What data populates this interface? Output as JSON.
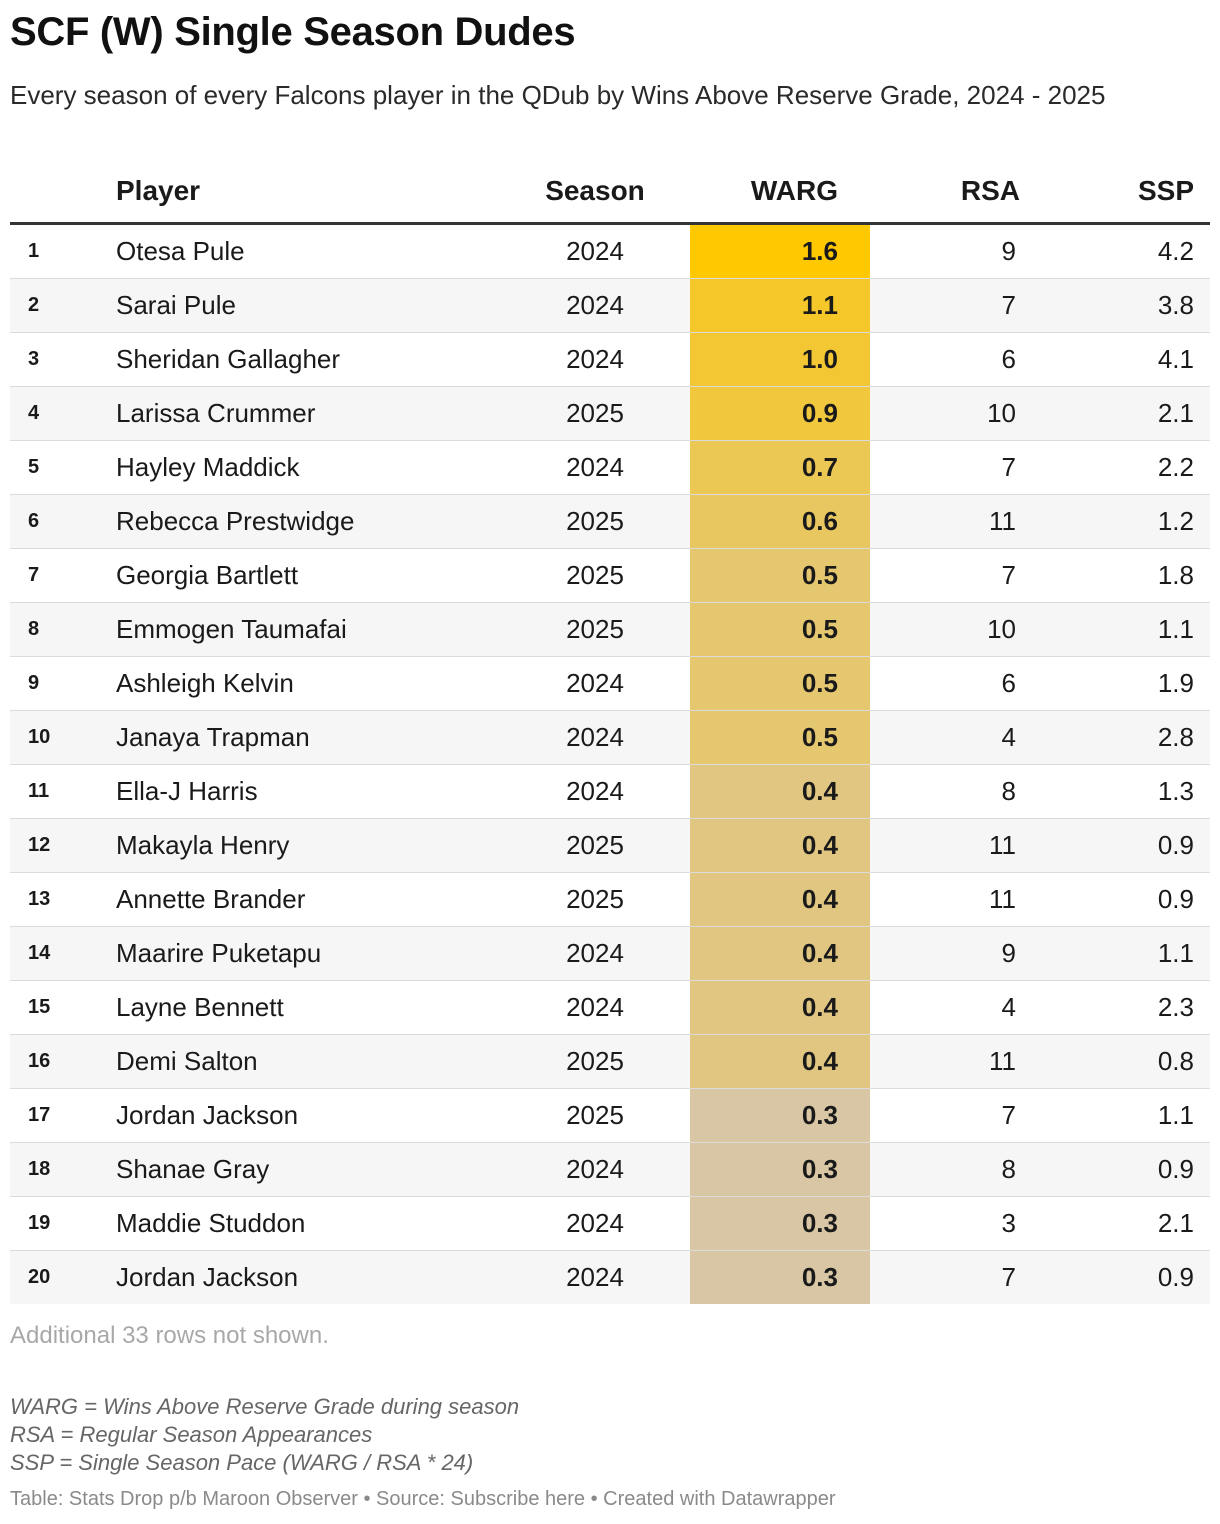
{
  "title": "SCF (W) Single Season Dudes",
  "subtitle": "Every season of every Falcons player in the QDub by Wins Above Reserve Grade, 2024 - 2025",
  "colors": {
    "warg_high": "#FFC800",
    "warg_low": "#D8C6A4",
    "header_rule": "#333333",
    "zebra": "#F6F6F6"
  },
  "chart_data": {
    "type": "table",
    "columns": [
      "",
      "Player",
      "Season",
      "WARG",
      "RSA",
      "SSP"
    ],
    "rows": [
      {
        "rank": "1",
        "player": "Otesa Pule",
        "season": "2024",
        "warg": "1.6",
        "rsa": "9",
        "ssp": "4.2"
      },
      {
        "rank": "2",
        "player": "Sarai Pule",
        "season": "2024",
        "warg": "1.1",
        "rsa": "7",
        "ssp": "3.8"
      },
      {
        "rank": "3",
        "player": "Sheridan Gallagher",
        "season": "2024",
        "warg": "1.0",
        "rsa": "6",
        "ssp": "4.1"
      },
      {
        "rank": "4",
        "player": "Larissa Crummer",
        "season": "2025",
        "warg": "0.9",
        "rsa": "10",
        "ssp": "2.1"
      },
      {
        "rank": "5",
        "player": "Hayley Maddick",
        "season": "2024",
        "warg": "0.7",
        "rsa": "7",
        "ssp": "2.2"
      },
      {
        "rank": "6",
        "player": "Rebecca Prestwidge",
        "season": "2025",
        "warg": "0.6",
        "rsa": "11",
        "ssp": "1.2"
      },
      {
        "rank": "7",
        "player": "Georgia Bartlett",
        "season": "2025",
        "warg": "0.5",
        "rsa": "7",
        "ssp": "1.8"
      },
      {
        "rank": "8",
        "player": "Emmogen Taumafai",
        "season": "2025",
        "warg": "0.5",
        "rsa": "10",
        "ssp": "1.1"
      },
      {
        "rank": "9",
        "player": "Ashleigh Kelvin",
        "season": "2024",
        "warg": "0.5",
        "rsa": "6",
        "ssp": "1.9"
      },
      {
        "rank": "10",
        "player": "Janaya Trapman",
        "season": "2024",
        "warg": "0.5",
        "rsa": "4",
        "ssp": "2.8"
      },
      {
        "rank": "11",
        "player": "Ella-J Harris",
        "season": "2024",
        "warg": "0.4",
        "rsa": "8",
        "ssp": "1.3"
      },
      {
        "rank": "12",
        "player": "Makayla Henry",
        "season": "2025",
        "warg": "0.4",
        "rsa": "11",
        "ssp": "0.9"
      },
      {
        "rank": "13",
        "player": "Annette Brander",
        "season": "2025",
        "warg": "0.4",
        "rsa": "11",
        "ssp": "0.9"
      },
      {
        "rank": "14",
        "player": "Maarire Puketapu",
        "season": "2024",
        "warg": "0.4",
        "rsa": "9",
        "ssp": "1.1"
      },
      {
        "rank": "15",
        "player": "Layne Bennett",
        "season": "2024",
        "warg": "0.4",
        "rsa": "4",
        "ssp": "2.3"
      },
      {
        "rank": "16",
        "player": "Demi Salton",
        "season": "2025",
        "warg": "0.4",
        "rsa": "11",
        "ssp": "0.8"
      },
      {
        "rank": "17",
        "player": "Jordan Jackson",
        "season": "2025",
        "warg": "0.3",
        "rsa": "7",
        "ssp": "1.1"
      },
      {
        "rank": "18",
        "player": "Shanae Gray",
        "season": "2024",
        "warg": "0.3",
        "rsa": "8",
        "ssp": "0.9"
      },
      {
        "rank": "19",
        "player": "Maddie Studdon",
        "season": "2024",
        "warg": "0.3",
        "rsa": "3",
        "ssp": "2.1"
      },
      {
        "rank": "20",
        "player": "Jordan Jackson",
        "season": "2024",
        "warg": "0.3",
        "rsa": "7",
        "ssp": "0.9"
      }
    ]
  },
  "rows_not_shown": "Additional 33 rows not shown.",
  "notes": [
    "WARG = Wins Above Reserve Grade during season",
    "RSA = Regular Season Appearances",
    "SSP = Single Season Pace (WARG / RSA * 24)"
  ],
  "footer": "Table: Stats Drop p/b Maroon Observer • Source: Subscribe here • Created with Datawrapper"
}
